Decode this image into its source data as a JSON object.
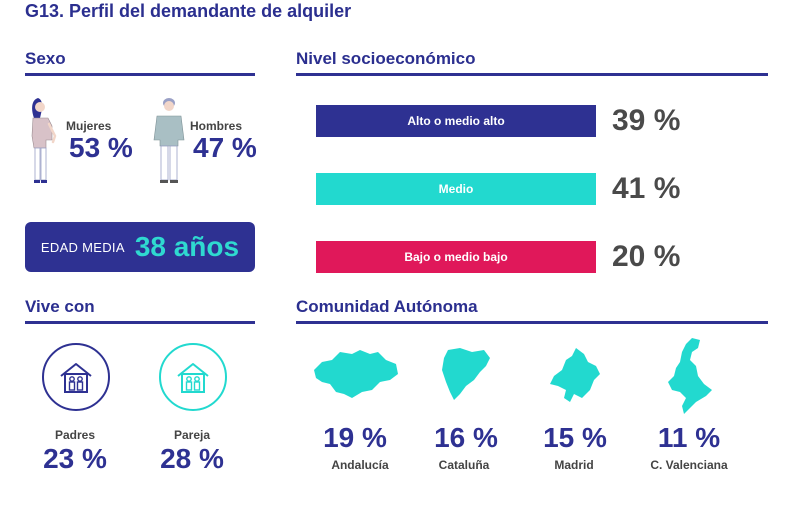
{
  "title": "G13. Perfil del demandante de alquiler",
  "sexo": {
    "heading": "Sexo",
    "mujeres": {
      "label": "Mujeres",
      "value": "53 %"
    },
    "hombres": {
      "label": "Hombres",
      "value": "47 %"
    }
  },
  "edad": {
    "label": "EDAD MEDIA",
    "value": "38 años"
  },
  "nivel": {
    "heading": "Nivel socioeconómico",
    "items": [
      {
        "label": "Alto o medio alto",
        "value": "39 %",
        "color": "#2e3192"
      },
      {
        "label": "Medio",
        "value": "41 %",
        "color": "#22d9cf"
      },
      {
        "label": "Bajo o medio bajo",
        "value": "20 %",
        "color": "#e0185a"
      }
    ]
  },
  "vive": {
    "heading": "Vive con",
    "padres": {
      "label": "Padres",
      "value": "23 %"
    },
    "pareja": {
      "label": "Pareja",
      "value": "28 %"
    }
  },
  "comunidad": {
    "heading": "Comunidad Autónoma",
    "items": [
      {
        "name": "Andalucía",
        "value": "19 %"
      },
      {
        "name": "Cataluña",
        "value": "16 %"
      },
      {
        "name": "Madrid",
        "value": "15 %"
      },
      {
        "name": "C. Valenciana",
        "value": "11 %"
      }
    ]
  },
  "colors": {
    "navy": "#2e3192",
    "teal": "#22d9cf",
    "pink": "#e0185a"
  }
}
